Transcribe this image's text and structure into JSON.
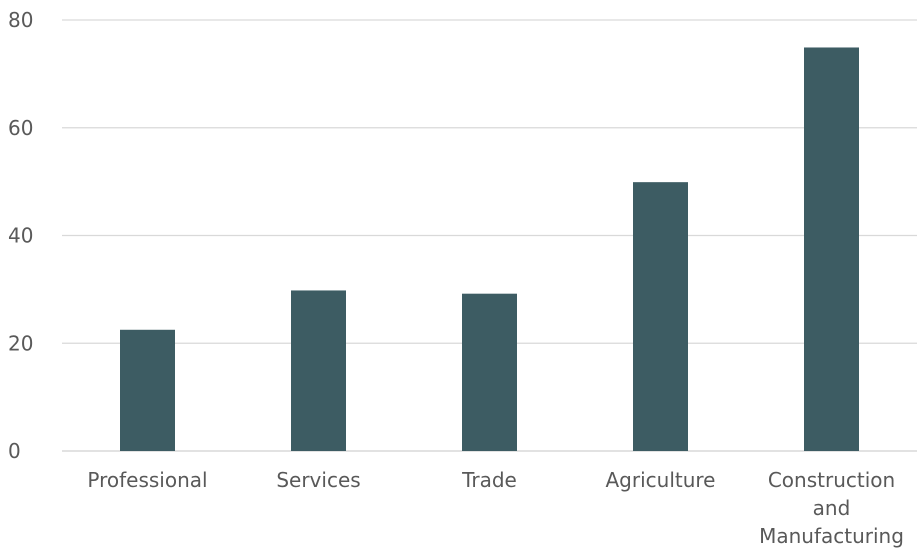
{
  "chart_data": {
    "type": "bar",
    "categories": [
      "Professional",
      "Services",
      "Trade",
      "Agriculture",
      "Construction and Manufacturing"
    ],
    "category_label_lines": [
      [
        "Professional"
      ],
      [
        "Services"
      ],
      [
        "Trade"
      ],
      [
        "Agriculture"
      ],
      [
        "Construction",
        "and",
        "Manufacturing"
      ]
    ],
    "values": [
      22.5,
      29.8,
      29.2,
      49.9,
      74.9
    ],
    "title": "",
    "xlabel": "",
    "ylabel": "",
    "ylim": [
      0,
      80
    ],
    "yticks": [
      0,
      20,
      40,
      60,
      80
    ],
    "grid": true,
    "legend": "none",
    "colors": {
      "bar": "#3d5c63",
      "grid": "#d9d9d9",
      "text": "#595959"
    }
  }
}
